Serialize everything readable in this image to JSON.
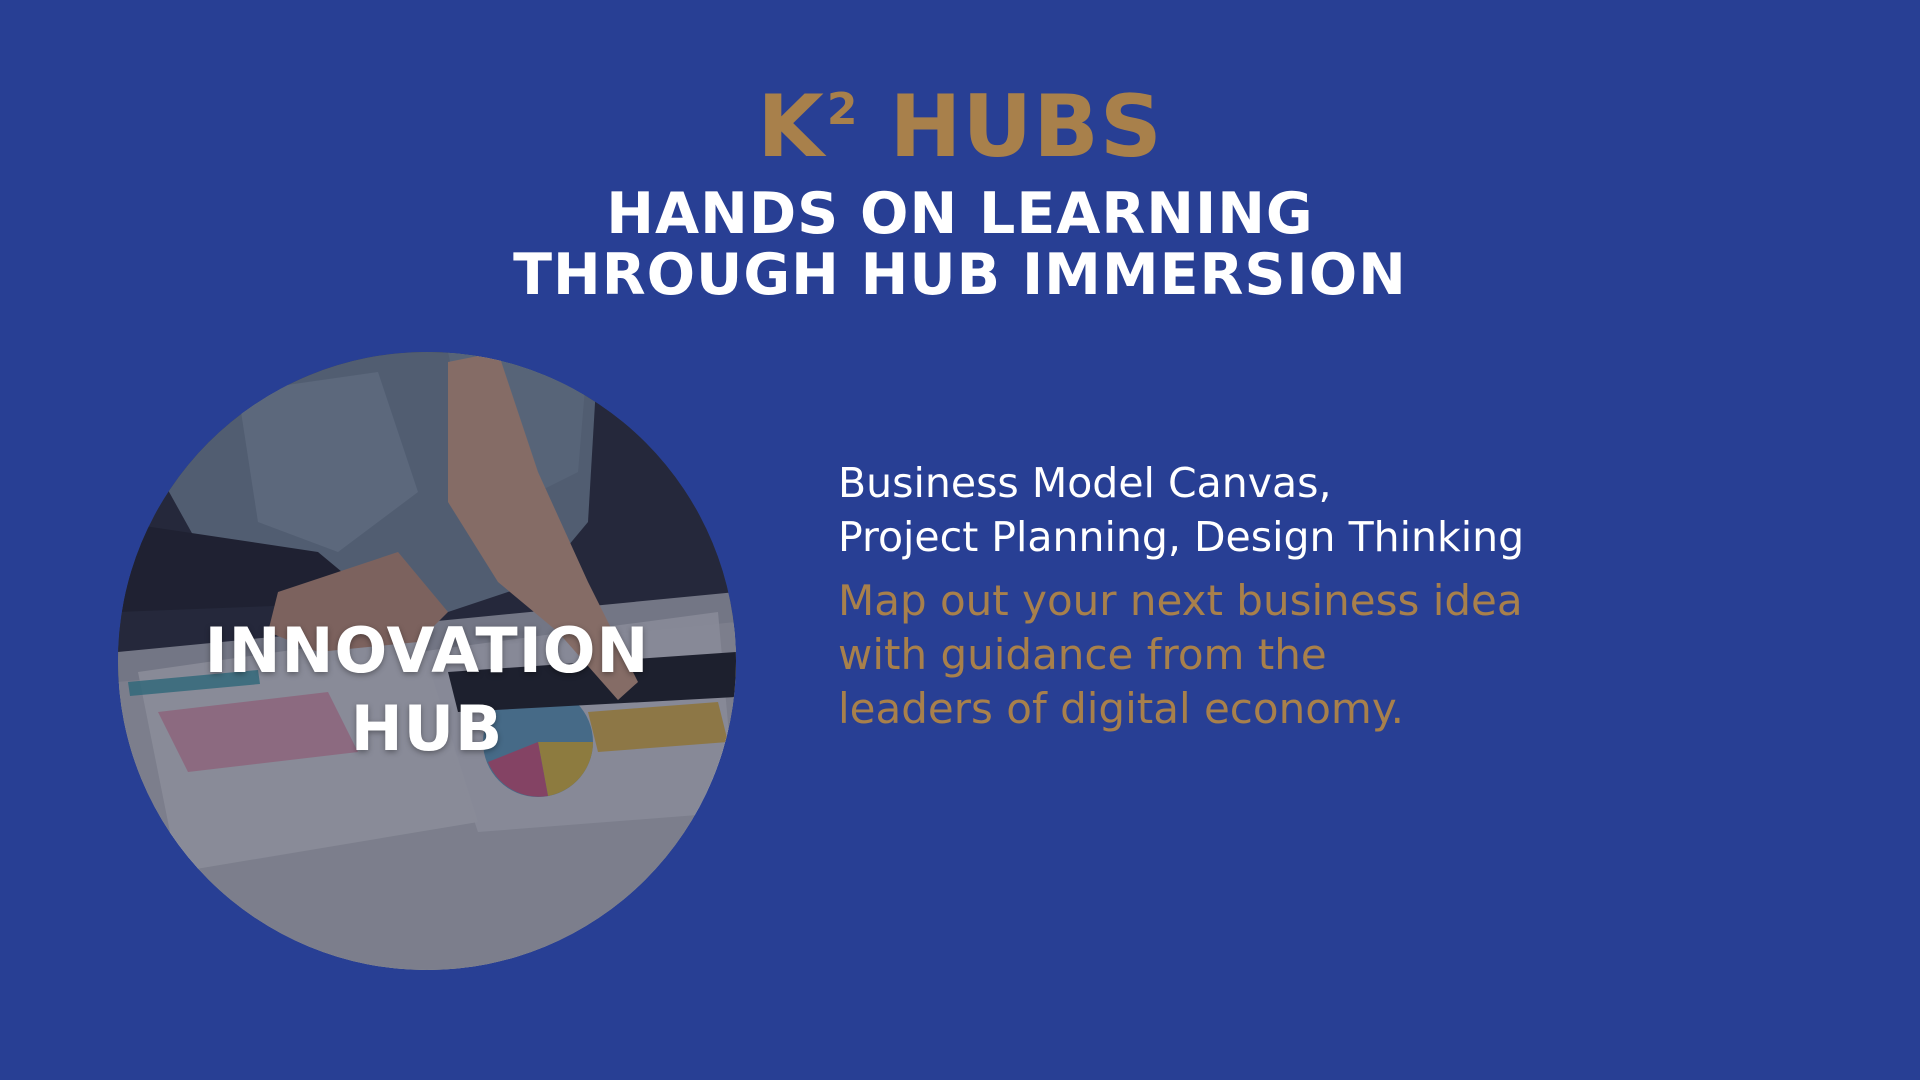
{
  "header": {
    "brand_main": "K",
    "brand_sup": "2",
    "brand_rest": " HUBS",
    "subtitle_line1": "HANDS ON LEARNING",
    "subtitle_line2": "THROUGH HUB IMMERSION"
  },
  "hub": {
    "label_line1": "INNOVATION",
    "label_line2": "HUB"
  },
  "details": {
    "topics_line1": "Business Model Canvas,",
    "topics_line2": "Project Planning, Design Thinking",
    "desc_line1": "Map out your next business idea",
    "desc_line2": "with guidance from the",
    "desc_line3": "leaders of digital economy."
  },
  "colors": {
    "background": "#283f94",
    "accent_gold": "#a8804b",
    "text_white": "#ffffff"
  }
}
